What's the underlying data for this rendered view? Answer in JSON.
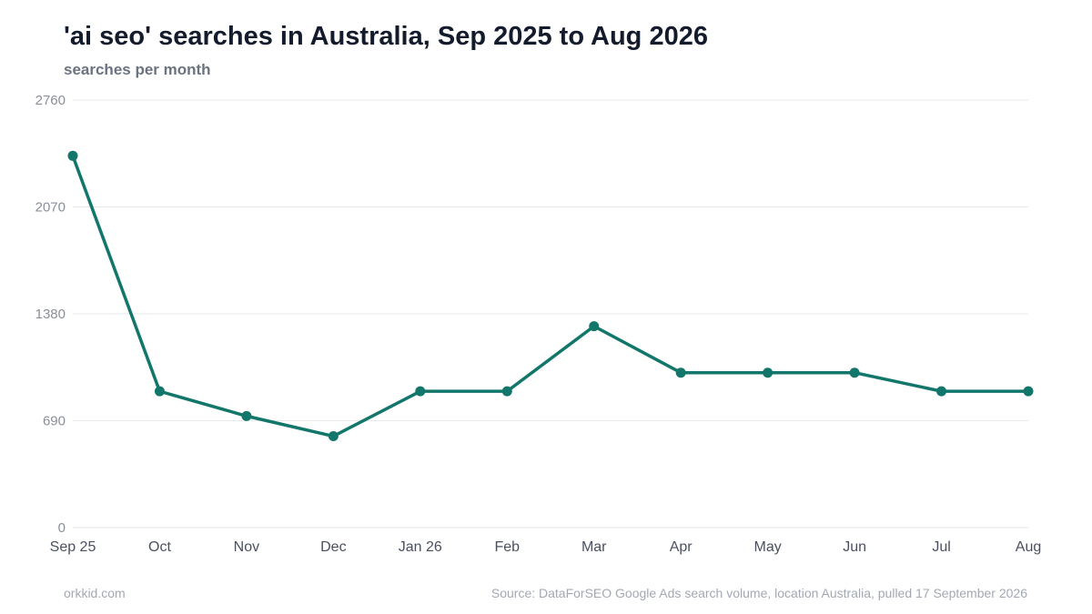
{
  "header": {
    "title": "'ai seo' searches in Australia, Sep 2025 to Aug 2026",
    "subtitle": "searches per month"
  },
  "footer": {
    "site": "orkkid.com",
    "source": "Source: DataForSEO Google Ads search volume, location Australia, pulled 17 September 2026"
  },
  "colors": {
    "line": "#12766a",
    "grid": "#e6e8ec",
    "baseline": "#e1e4e8"
  },
  "chart_data": {
    "type": "line",
    "title": "'ai seo' searches in Australia, Sep 2025 to Aug 2026",
    "subtitle": "searches per month",
    "xlabel": "",
    "ylabel": "",
    "categories": [
      "Sep 25",
      "Oct",
      "Nov",
      "Dec",
      "Jan 26",
      "Feb",
      "Mar",
      "Apr",
      "May",
      "Jun",
      "Jul",
      "Aug"
    ],
    "series": [
      {
        "values": [
          2400,
          880,
          720,
          590,
          880,
          880,
          1300,
          1000,
          1000,
          1000,
          880,
          880
        ]
      }
    ],
    "ylim": [
      0,
      2760
    ],
    "yticks": [
      0,
      690,
      1380,
      2070,
      2760
    ],
    "grid": true,
    "legend": "none"
  }
}
